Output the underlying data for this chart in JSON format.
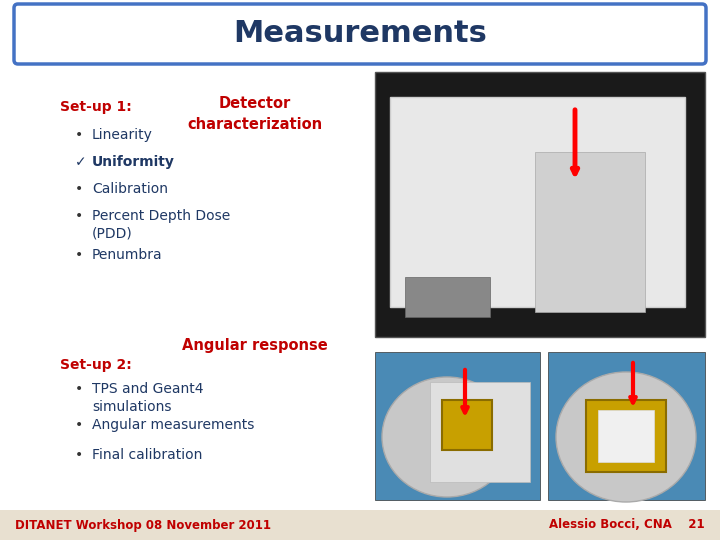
{
  "title": "Measurements",
  "title_color": "#1F3864",
  "title_fontsize": 22,
  "title_box_color": "#FFFFFF",
  "title_box_edge": "#4472C4",
  "bg_color": "#FFFFFF",
  "setup1_label": "Set-up 1:",
  "setup1_color": "#C00000",
  "detector_label": "Detector\ncharacterization",
  "detector_color": "#C00000",
  "bullet_items": [
    {
      "text": "Linearity",
      "bold": false,
      "check": false
    },
    {
      "text": "Uniformity",
      "bold": true,
      "check": true
    },
    {
      "text": "Calibration",
      "bold": false,
      "check": false
    },
    {
      "text": "Percent Depth Dose\n(PDD)",
      "bold": false,
      "check": false
    },
    {
      "text": "Penumbra",
      "bold": false,
      "check": false
    }
  ],
  "bullet_color": "#1F3864",
  "bullet_size": 10,
  "angular_label": "Angular response",
  "angular_color": "#C00000",
  "setup2_label": "Set-up 2:",
  "setup2_color": "#C00000",
  "bullet_items2": [
    {
      "text": "TPS and Geant4\nsimulations"
    },
    {
      "text": "Angular measurements"
    },
    {
      "text": "Final calibration"
    }
  ],
  "footer_left": "DITANET Workshop 08 November 2011",
  "footer_right": "Alessio Bocci, CNA    21",
  "footer_color": "#C00000",
  "footer_bg": "#E8E0D0",
  "slide_bg": "#FFFFFF"
}
